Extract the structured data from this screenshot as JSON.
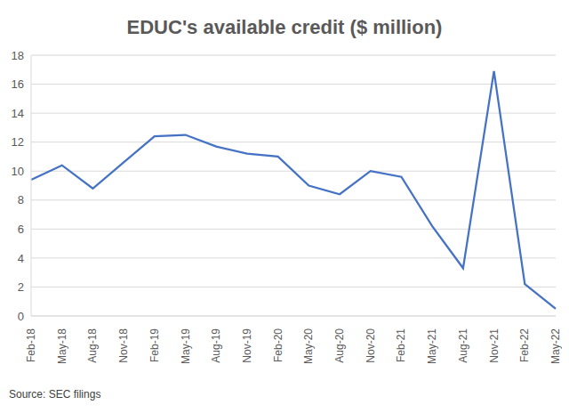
{
  "chart_data": {
    "type": "line",
    "title": "EDUC's available credit ($ million)",
    "source": "Source: SEC filings",
    "categories": [
      "Feb-18",
      "May-18",
      "Aug-18",
      "Nov-18",
      "Feb-19",
      "May-19",
      "Aug-19",
      "Nov-19",
      "Feb-20",
      "May-20",
      "Aug-20",
      "Nov-20",
      "Feb-21",
      "May-21",
      "Aug-21",
      "Nov-21",
      "Feb-22",
      "May-22"
    ],
    "values": [
      9.4,
      10.4,
      8.8,
      10.6,
      12.4,
      12.5,
      11.7,
      11.2,
      11.0,
      9.0,
      8.4,
      10.0,
      9.6,
      6.2,
      3.3,
      16.9,
      2.2,
      0.5
    ],
    "color": "#4472c4",
    "ylim": [
      0,
      18
    ],
    "yticks": [
      0,
      2,
      4,
      6,
      8,
      10,
      12,
      14,
      16,
      18
    ],
    "grid": true
  }
}
